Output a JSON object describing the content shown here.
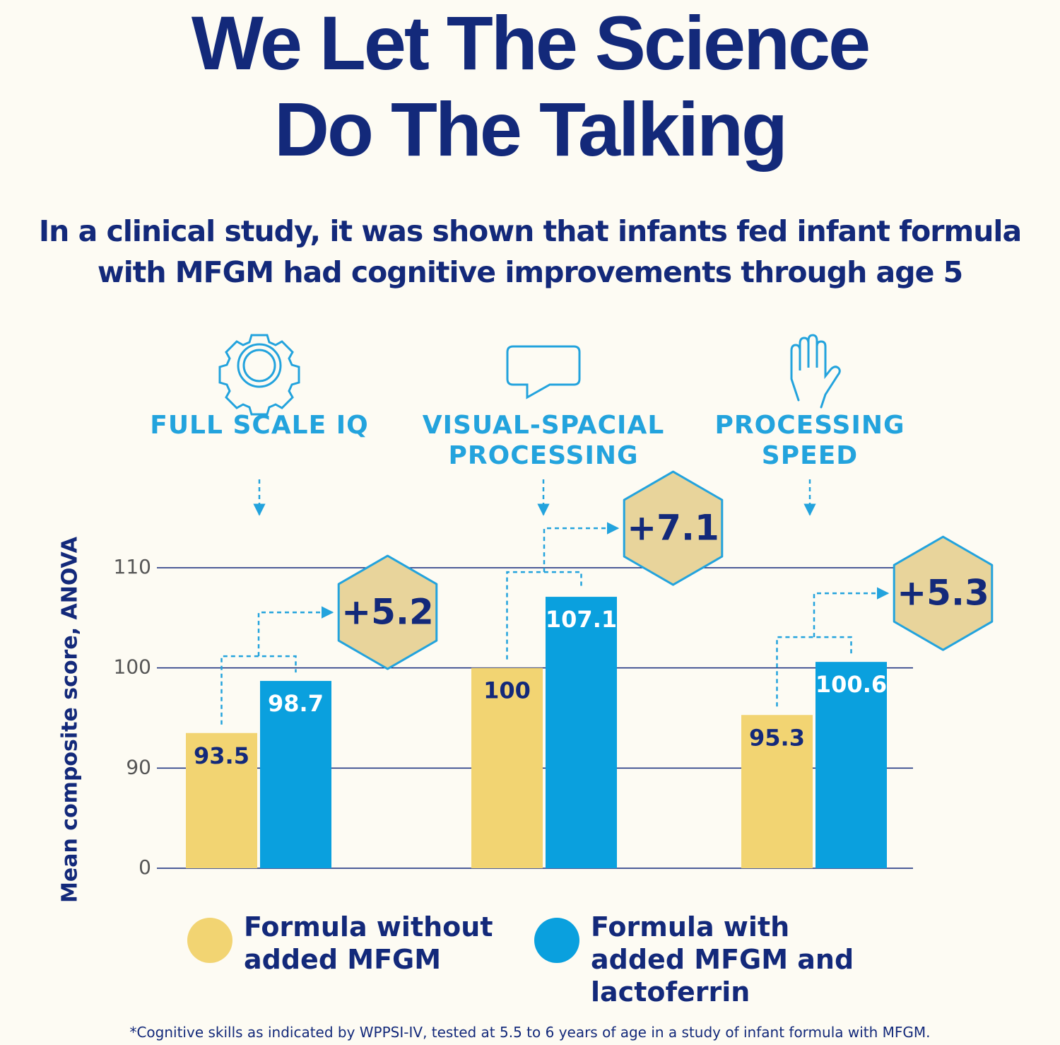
{
  "chart_data": {
    "type": "bar",
    "title": "We Let The Science Do The Talking",
    "subtitle": "In a clinical study, it was shown that infants fed infant formula with MFGM had cognitive improvements through age 5",
    "categories": [
      "FULL SCALE IQ",
      "VISUAL-SPACIAL PROCESSING",
      "PROCESSING SPEED"
    ],
    "series": [
      {
        "name": "Formula without added MFGM",
        "color": "#f2d472",
        "values": [
          93.5,
          100,
          95.3
        ]
      },
      {
        "name": "Formula with added MFGM and lactoferrin",
        "color": "#0aa0de",
        "values": [
          98.7,
          107.1,
          100.6
        ]
      }
    ],
    "annotations": [
      "+5.2",
      "+7.1",
      "+5.3"
    ],
    "ylabel": "Mean composite score, ANOVA",
    "ylim": [
      0,
      110
    ],
    "yticks": [
      0,
      90,
      100,
      110
    ],
    "grid": true,
    "footnote": "*Cognitive skills as indicated by WPPSI-IV, tested at 5.5 to 6 years of age in a study of infant formula with MFGM."
  }
}
